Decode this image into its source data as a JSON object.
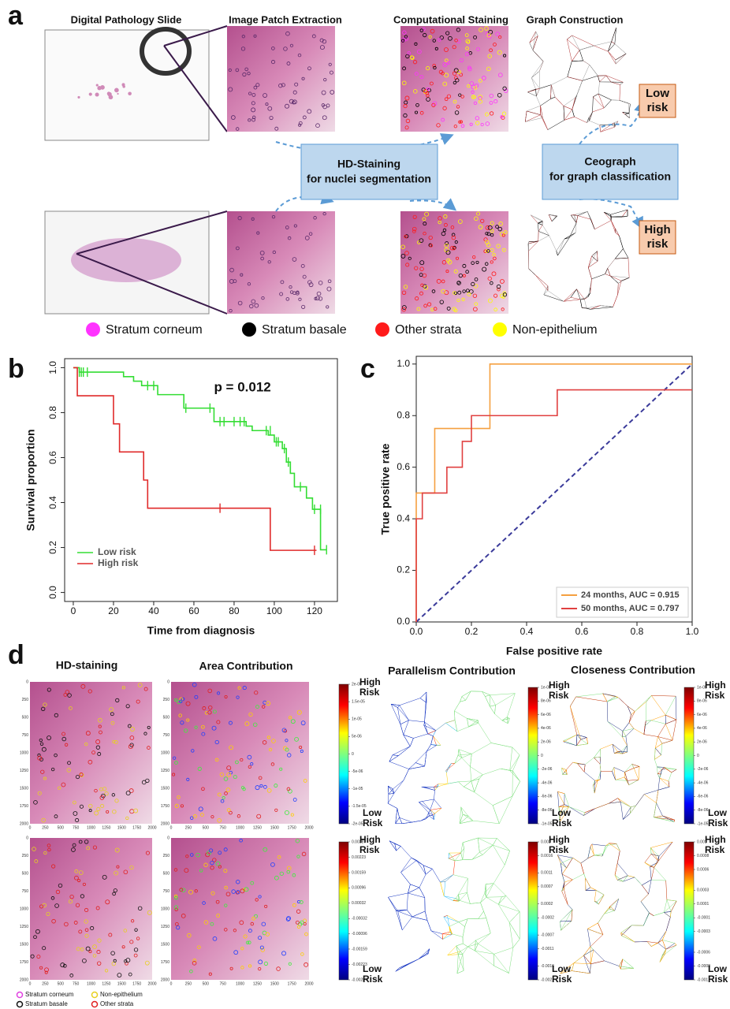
{
  "panel_a": {
    "label": "a",
    "column_titles": [
      "Digital Pathology Slide",
      "Image Patch Extraction",
      "Computational Staining",
      "Graph Construction"
    ],
    "hd_staining": [
      "HD-Staining",
      "for nuclei segmentation"
    ],
    "ceograph": [
      "Ceograph",
      "for graph classification"
    ],
    "low_risk": [
      "Low",
      "risk"
    ],
    "high_risk": [
      "High",
      "risk"
    ],
    "legend": [
      {
        "label": "Stratum corneum",
        "color": "#ff33ff"
      },
      {
        "label": "Stratum basale",
        "color": "#000000"
      },
      {
        "label": "Other strata",
        "color": "#ff1a1a"
      },
      {
        "label": "Non-epithelium",
        "color": "#ffff00"
      }
    ]
  },
  "chart_data": [
    {
      "type": "line",
      "panel": "b",
      "step": true,
      "annotation": "p = 0.012",
      "xlabel": "Time from diagnosis",
      "ylabel": "Survival proportion",
      "xlim": [
        -4.3,
        131.4
      ],
      "ylim": [
        -0.04,
        1.04
      ],
      "xticks": [
        0,
        20,
        40,
        60,
        80,
        100,
        120
      ],
      "yticks": [
        {
          "value": 0,
          "label": "0.0"
        },
        0.2,
        0.4,
        0.6,
        0.8,
        {
          "value": 1,
          "label": "1.0"
        }
      ],
      "legend": "lower left",
      "series": [
        {
          "name": "Low risk",
          "color": "#33dd33",
          "x": [
            0,
            3,
            25,
            30,
            34,
            42,
            55,
            70,
            86,
            89,
            97,
            100,
            104,
            106,
            108,
            110,
            116,
            119,
            123,
            126
          ],
          "values": [
            1,
            0.98,
            0.96,
            0.94,
            0.92,
            0.88,
            0.82,
            0.76,
            0.74,
            0.72,
            0.7,
            0.67,
            0.64,
            0.58,
            0.53,
            0.47,
            0.42,
            0.37,
            0.19,
            0.19
          ],
          "censor_x": [
            3,
            4,
            5,
            7,
            37,
            40,
            56,
            68,
            73,
            75,
            80,
            83,
            85,
            96,
            98,
            101,
            102,
            105,
            107,
            113,
            120,
            123,
            126
          ],
          "censor_values": [
            0.98,
            0.98,
            0.98,
            0.98,
            0.92,
            0.92,
            0.82,
            0.82,
            0.76,
            0.76,
            0.76,
            0.76,
            0.76,
            0.72,
            0.72,
            0.67,
            0.67,
            0.64,
            0.58,
            0.47,
            0.37,
            0.37,
            0.19
          ]
        },
        {
          "name": "High risk",
          "color": "#e02a2a",
          "x": [
            0,
            2,
            20,
            23,
            35,
            37,
            98,
            121
          ],
          "values": [
            1,
            0.875,
            0.75,
            0.625,
            0.5,
            0.375,
            0.1875,
            0.1875
          ],
          "censor_x": [
            73,
            120
          ],
          "censor_values": [
            0.375,
            0.1875
          ]
        }
      ]
    },
    {
      "type": "line",
      "panel": "c",
      "step": false,
      "diagonal": true,
      "xlabel": "False positive rate",
      "ylabel": "True positive rate",
      "xlim": [
        0,
        1
      ],
      "ylim": [
        0,
        1.03
      ],
      "xticks": [
        {
          "value": 0,
          "label": "0.0"
        },
        0.2,
        0.4,
        0.6,
        0.8,
        {
          "value": 1,
          "label": "1.0"
        }
      ],
      "yticks": [
        {
          "value": 0,
          "label": "0.0"
        },
        0.2,
        0.4,
        0.6,
        0.8,
        {
          "value": 1,
          "label": "1.0"
        }
      ],
      "legend": "lower right",
      "series": [
        {
          "name": "24 months, AUC = 0.915",
          "color": "#f5a040",
          "x": [
            0,
            0,
            0.067,
            0.067,
            0.267,
            0.267,
            1
          ],
          "values": [
            0,
            0.5,
            0.5,
            0.75,
            0.75,
            1,
            1
          ]
        },
        {
          "name": "50 months, AUC = 0.797",
          "color": "#e04040",
          "x": [
            0,
            0,
            0.022,
            0.022,
            0.111,
            0.111,
            0.167,
            0.167,
            0.2,
            0.2,
            0.511,
            0.511,
            1
          ],
          "values": [
            0,
            0.4,
            0.4,
            0.5,
            0.5,
            0.6,
            0.6,
            0.7,
            0.7,
            0.8,
            0.8,
            0.9,
            0.9
          ]
        }
      ]
    }
  ],
  "panel_d": {
    "label": "d",
    "titles": [
      "HD-staining",
      "Area Contribution",
      "Parallelism Contribution",
      "Closeness Contribution"
    ],
    "high_risk": [
      "High",
      "Risk"
    ],
    "low_risk": [
      "Low",
      "Risk"
    ],
    "image_ticks": [
      0,
      250,
      500,
      750,
      1000,
      1250,
      1500,
      1750,
      2000
    ],
    "colorbars": [
      {
        "lim": [
          -2e-05,
          2e-05
        ],
        "ticks": [
          {
            "value": 2e-05,
            "label": "2e-05"
          },
          {
            "value": 1.5e-05,
            "label": "1.5e-05"
          },
          {
            "value": 1e-05,
            "label": "1e-05"
          },
          {
            "value": 5e-06,
            "label": "5e-06"
          },
          0,
          {
            "value": -5e-06,
            "label": "-5e-06"
          },
          {
            "value": -1e-05,
            "label": "-1e-05"
          },
          {
            "value": -1.5e-05,
            "label": "-1.5e-05"
          },
          {
            "value": -2e-05,
            "label": "-2e-05"
          }
        ]
      },
      {
        "lim": [
          -1e-05,
          1e-05
        ],
        "ticks": [
          {
            "value": 1e-05,
            "label": "1e-05"
          },
          {
            "value": 8e-06,
            "label": "8e-06"
          },
          {
            "value": 6e-06,
            "label": "6e-06"
          },
          {
            "value": 4e-06,
            "label": "4e-06"
          },
          {
            "value": 2e-06,
            "label": "2e-06"
          },
          0,
          {
            "value": -2e-06,
            "label": "-2e-06"
          },
          {
            "value": -4e-06,
            "label": "-4e-06"
          },
          {
            "value": -6e-06,
            "label": "-6e-06"
          },
          {
            "value": -8e-06,
            "label": "-8e-06"
          },
          {
            "value": -1e-05,
            "label": "-1e-05"
          }
        ]
      },
      {
        "lim": [
          -1e-05,
          1e-05
        ],
        "ticks": [
          {
            "value": 1e-05,
            "label": "1e-05"
          },
          {
            "value": 8e-06,
            "label": "8e-06"
          },
          {
            "value": 6e-06,
            "label": "6e-06"
          },
          {
            "value": 4e-06,
            "label": "4e-06"
          },
          {
            "value": 2e-06,
            "label": "2e-06"
          },
          0,
          {
            "value": -2e-06,
            "label": "-2e-06"
          },
          {
            "value": -4e-06,
            "label": "-4e-06"
          },
          {
            "value": -6e-06,
            "label": "-6e-06"
          },
          {
            "value": -8e-06,
            "label": "-8e-06"
          },
          {
            "value": -1e-05,
            "label": "-1e-05"
          }
        ]
      },
      {
        "lim": [
          -0.00287,
          0.00287
        ],
        "ticks": [
          0.00287,
          0.00223,
          0.00159,
          0.00096,
          0.00032,
          -0.00032,
          -0.00096,
          -0.00159,
          -0.00223,
          -0.00287
        ]
      },
      {
        "lim": [
          -0.002,
          0.002
        ],
        "ticks": [
          0.002,
          0.0016,
          0.0011,
          0.0007,
          0.0002,
          -0.0002,
          -0.0007,
          -0.0011,
          -0.0016,
          -0.002
        ]
      },
      {
        "lim": [
          -0.001,
          0.001
        ],
        "ticks": [
          0.001,
          0.0008,
          0.0006,
          0.0003,
          0.0001,
          -0.0001,
          -0.0003,
          -0.0006,
          -0.0008,
          -0.001
        ]
      }
    ],
    "legend": [
      {
        "label": "Stratum corneum",
        "color": "#e040e0"
      },
      {
        "label": "Non-epithelium",
        "color": "#e8d020"
      },
      {
        "label": "Stratum basale",
        "color": "#111111"
      },
      {
        "label": "Other strata",
        "color": "#e02020"
      }
    ]
  }
}
